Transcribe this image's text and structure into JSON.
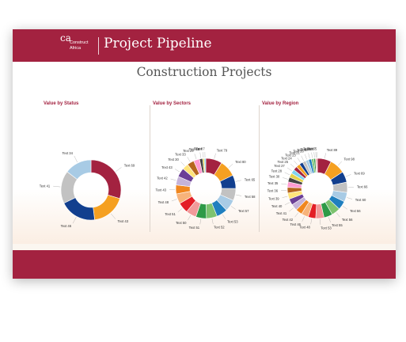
{
  "header": {
    "logo_mark": "ca",
    "logo_line1": "Construct",
    "logo_line2": "Africa",
    "app_title": "Project Pipeline"
  },
  "page": {
    "title": "Construction Projects"
  },
  "colors": {
    "brand": "#a32240",
    "background": "#fbf6f0"
  },
  "chart_data": [
    {
      "type": "pie",
      "title": "Value by Status",
      "donut": true,
      "labels": [
        "Text 69",
        "Text 43",
        "Text 46",
        "Text 41",
        "Text 34"
      ],
      "values": [
        69,
        43,
        46,
        41,
        34
      ],
      "colors": [
        "#a32240",
        "#f5a021",
        "#123f8e",
        "#c2c2c2",
        "#a8cbe5"
      ]
    },
    {
      "type": "pie",
      "title": "Value by Sectors",
      "donut": true,
      "labels": [
        "Text 79",
        "Text 80",
        "Text 65",
        "Text 58",
        "Text 57",
        "Text 53",
        "Text 52",
        "Text 51",
        "Text 50",
        "Text 51",
        "Text 48",
        "Text 43",
        "Text 42",
        "Text 43",
        "Text 30",
        "Text 33",
        "Text 29",
        "Text 15",
        "Text 8",
        "Text 7"
      ],
      "values": [
        79,
        80,
        65,
        58,
        57,
        53,
        52,
        51,
        50,
        51,
        48,
        43,
        42,
        43,
        30,
        33,
        29,
        15,
        8,
        7
      ],
      "colors": [
        "#a32240",
        "#f5a021",
        "#123f8e",
        "#c2c2c2",
        "#a8cbe5",
        "#1f7fbf",
        "#7dc36f",
        "#2e9a47",
        "#f19a9a",
        "#e31e26",
        "#f7b37a",
        "#f0871f",
        "#c5b3d9",
        "#6b3f97",
        "#ffe37a",
        "#b5651d",
        "#ff9cd1",
        "#444444",
        "#e5d34b",
        "#7fd3ee"
      ]
    },
    {
      "type": "pie",
      "title": "Value by Region",
      "donut": true,
      "labels": [
        "Text 89",
        "Text 98",
        "Text 69",
        "Text 66",
        "Text 60",
        "Text 56",
        "Text 56",
        "Text 55",
        "Text 53",
        "Text 48",
        "Text 46",
        "Text 42",
        "Text 41",
        "Text 40",
        "Text 39",
        "Text 36",
        "Text 35",
        "Text 30",
        "Text 28",
        "Text 27",
        "Text 25",
        "Text 24",
        "Text 23",
        "Text 21",
        "Text 20",
        "Text 18",
        "Text 15",
        "Text 11",
        "Text 7",
        "Text 5"
      ],
      "values": [
        89,
        98,
        69,
        66,
        60,
        56,
        56,
        55,
        53,
        48,
        46,
        42,
        41,
        40,
        39,
        36,
        35,
        30,
        28,
        27,
        25,
        24,
        23,
        21,
        20,
        18,
        15,
        11,
        7,
        5
      ],
      "colors": [
        "#a32240",
        "#f5a021",
        "#123f8e",
        "#c2c2c2",
        "#a8cbe5",
        "#1f7fbf",
        "#7dc36f",
        "#2e9a47",
        "#f19a9a",
        "#e31e26",
        "#f7b37a",
        "#f0871f",
        "#c5b3d9",
        "#6b3f97",
        "#ffe37a",
        "#b5651d",
        "#ff9cd1",
        "#444444",
        "#e5d34b",
        "#7fd3ee",
        "#a32240",
        "#f5a021",
        "#123f8e",
        "#c2c2c2",
        "#a8cbe5",
        "#1f7fbf",
        "#7dc36f",
        "#2e9a47",
        "#f19a9a",
        "#e31e26"
      ]
    }
  ]
}
